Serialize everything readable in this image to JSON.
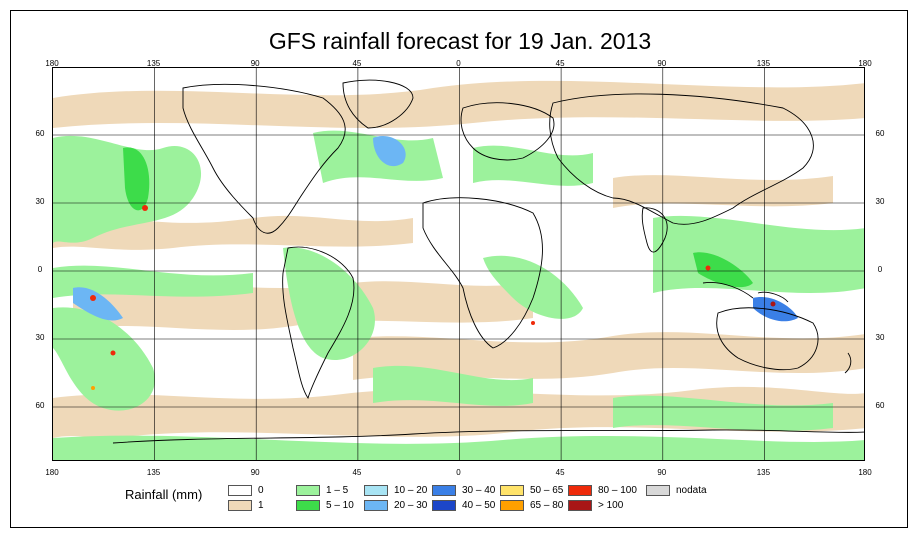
{
  "title": "GFS rainfall forecast for 19 Jan. 2013",
  "longitude_ticks": [
    "180",
    "135",
    "90",
    "45",
    "0",
    "45",
    "90",
    "135",
    "180"
  ],
  "latitude_ticks": [
    "60",
    "30",
    "0",
    "30",
    "60"
  ],
  "legend": {
    "title": "Rainfall (mm)",
    "items": [
      {
        "label": "0",
        "color": "#ffffff"
      },
      {
        "label": "1",
        "color": "#efd9b9"
      },
      {
        "label": "1 – 5",
        "color": "#9cf29c"
      },
      {
        "label": "5 – 10",
        "color": "#3ddc4a"
      },
      {
        "label": "10 – 20",
        "color": "#a8e4f4"
      },
      {
        "label": "20 – 30",
        "color": "#6cb6f4"
      },
      {
        "label": "30 – 40",
        "color": "#3a7fe6"
      },
      {
        "label": "40 – 50",
        "color": "#1c46c8"
      },
      {
        "label": "50 – 65",
        "color": "#ffe36a"
      },
      {
        "label": "65 – 80",
        "color": "#ffa000"
      },
      {
        "label": "80 – 100",
        "color": "#ee2a0a"
      },
      {
        "label": "> 100",
        "color": "#a81616"
      },
      {
        "label": "nodata",
        "color": "#d8d8d8"
      }
    ]
  }
}
